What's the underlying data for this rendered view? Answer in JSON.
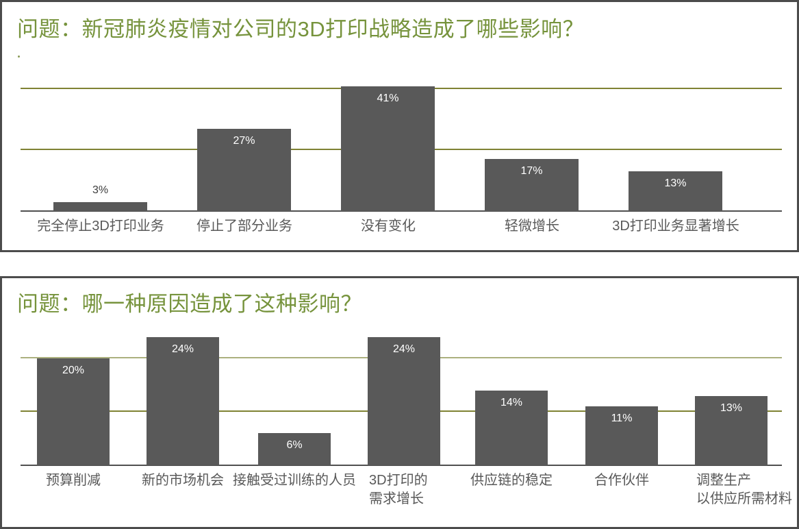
{
  "colors": {
    "title_green": "#76933C",
    "bar_fill": "#595959",
    "grid_dark": "#7f8233",
    "grid_light": "#abb07e",
    "axis": "#4f4f4f",
    "panel_border": "#4c4c4c",
    "category_label": "#595959",
    "value_inside": "#ffffff",
    "value_outside": "#3d3d3d"
  },
  "chart_data": [
    {
      "type": "bar",
      "title": "问题：新冠肺炎疫情对公司的3D打印战略造成了哪些影响？",
      "categories": [
        "完全停止3D打印业务",
        "停止了部分业务",
        "没有变化",
        "轻微增长",
        "3D打印业务显著增长"
      ],
      "values": [
        3,
        27,
        41,
        17,
        13
      ],
      "value_labels": [
        "3%",
        "27%",
        "41%",
        "17%",
        "13%"
      ],
      "xlabel": "",
      "ylabel": "",
      "ylim": [
        0,
        55
      ],
      "gridlines_percent": [
        20,
        40
      ],
      "grid": "on",
      "legend": "none"
    },
    {
      "type": "bar",
      "title": "问题：哪一种原因造成了这种影响？",
      "categories": [
        "预算削减",
        "新的市场机会",
        "接触受过训练的人员",
        "3D打印的\n需求增长",
        "供应链的稳定",
        "合作伙伴",
        "调整生产\n以供应所需材料"
      ],
      "values": [
        20,
        24,
        6,
        24,
        14,
        11,
        13
      ],
      "value_labels": [
        "20%",
        "24%",
        "6%",
        "24%",
        "14%",
        "11%",
        "13%"
      ],
      "xlabel": "",
      "ylabel": "",
      "ylim": [
        0,
        26
      ],
      "gridlines_percent": [
        10,
        20
      ],
      "grid": "on",
      "legend": "none"
    }
  ]
}
